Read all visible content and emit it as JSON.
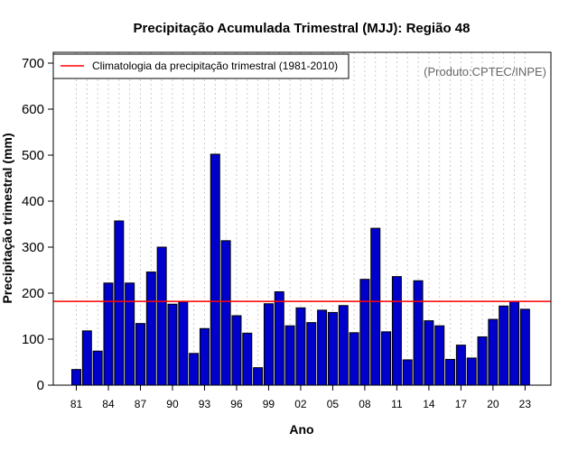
{
  "chart_data": {
    "type": "bar",
    "title": "Precipitação Acumulada Trimestral (MJJ): Região 48",
    "xlabel": "Ano",
    "ylabel": "Precipitação trimestral (mm)",
    "credit": "(Produto:CPTEC/INPE)",
    "legend": {
      "label": "Climatologia da precipitação trimestral (1981-2010)",
      "placement": "top-left"
    },
    "climatology": 182,
    "ylim": [
      0,
      700
    ],
    "yticks": [
      0,
      100,
      200,
      300,
      400,
      500,
      600,
      700
    ],
    "years": [
      1981,
      1982,
      1983,
      1984,
      1985,
      1986,
      1987,
      1988,
      1989,
      1990,
      1991,
      1992,
      1993,
      1994,
      1995,
      1996,
      1997,
      1998,
      1999,
      2000,
      2001,
      2002,
      2003,
      2004,
      2005,
      2006,
      2007,
      2008,
      2009,
      2010,
      2011,
      2012,
      2013,
      2014,
      2015,
      2016,
      2017,
      2018,
      2019,
      2020,
      2021,
      2022,
      2023
    ],
    "values": [
      34,
      118,
      74,
      222,
      357,
      222,
      134,
      246,
      300,
      176,
      181,
      69,
      123,
      502,
      314,
      151,
      113,
      38,
      177,
      203,
      129,
      168,
      136,
      163,
      158,
      173,
      114,
      230,
      341,
      116,
      236,
      55,
      227,
      140,
      129,
      56,
      87,
      59,
      105,
      143,
      172,
      182,
      165
    ],
    "xtick_labels": [
      "81",
      "84",
      "87",
      "90",
      "93",
      "96",
      "99",
      "02",
      "05",
      "08",
      "11",
      "14",
      "17",
      "20",
      "23"
    ],
    "grid": true,
    "colors": {
      "bar_fill": "#0000cc",
      "bar_edge": "#000000",
      "climatology_line": "#ff0000",
      "grid": "#cccccc",
      "credit": "#666666"
    }
  }
}
